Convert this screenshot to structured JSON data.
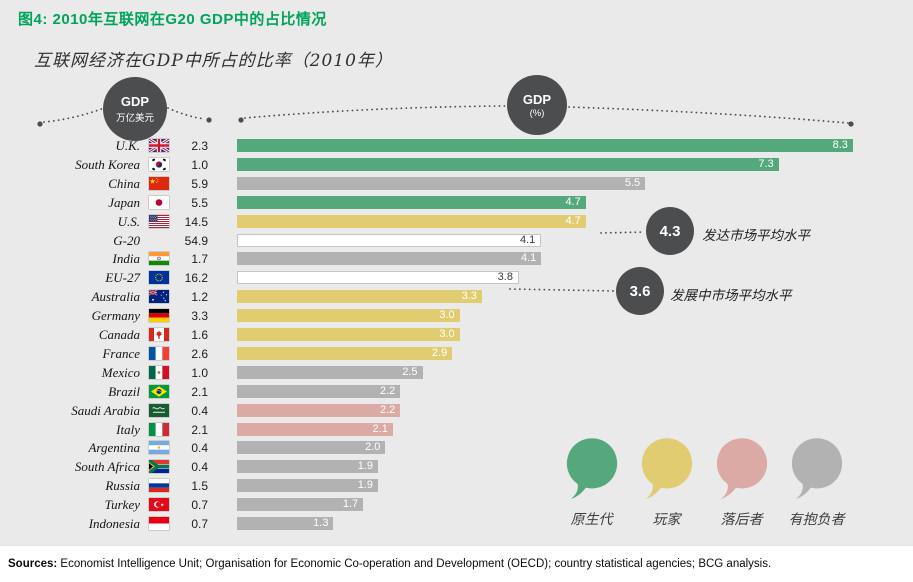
{
  "title": "图4: 2010年互联网在G20 GDP中的占比情况",
  "subtitle": "互联网经济在GDP中所占的比率（2010年）",
  "axis_badges": {
    "left": {
      "line1": "GDP",
      "line2": "万亿美元"
    },
    "right": {
      "line1": "GDP",
      "line2": "(%)"
    }
  },
  "chart_data": {
    "type": "bar",
    "orientation": "horizontal",
    "xlim": [
      0,
      8.8
    ],
    "value_unit": "%",
    "gdp_unit": "万亿美元",
    "rows": [
      {
        "country": "U.K.",
        "flag": "uk",
        "gdp": "2.3",
        "pct": 8.3,
        "group": "green"
      },
      {
        "country": "South Korea",
        "flag": "kr",
        "gdp": "1.0",
        "pct": 7.3,
        "group": "green"
      },
      {
        "country": "China",
        "flag": "cn",
        "gdp": "5.9",
        "pct": 5.5,
        "group": "gray"
      },
      {
        "country": "Japan",
        "flag": "jp",
        "gdp": "5.5",
        "pct": 4.7,
        "group": "green"
      },
      {
        "country": "U.S.",
        "flag": "us",
        "gdp": "14.5",
        "pct": 4.7,
        "group": "yellow"
      },
      {
        "country": "G-20",
        "flag": null,
        "gdp": "54.9",
        "pct": 4.1,
        "group": "white"
      },
      {
        "country": "India",
        "flag": "in",
        "gdp": "1.7",
        "pct": 4.1,
        "group": "gray"
      },
      {
        "country": "EU-27",
        "flag": "eu",
        "gdp": "16.2",
        "pct": 3.8,
        "group": "white"
      },
      {
        "country": "Australia",
        "flag": "au",
        "gdp": "1.2",
        "pct": 3.3,
        "group": "yellow"
      },
      {
        "country": "Germany",
        "flag": "de",
        "gdp": "3.3",
        "pct": 3.0,
        "group": "yellow"
      },
      {
        "country": "Canada",
        "flag": "ca",
        "gdp": "1.6",
        "pct": 3.0,
        "group": "yellow"
      },
      {
        "country": "France",
        "flag": "fr",
        "gdp": "2.6",
        "pct": 2.9,
        "group": "yellow"
      },
      {
        "country": "Mexico",
        "flag": "mx",
        "gdp": "1.0",
        "pct": 2.5,
        "group": "gray"
      },
      {
        "country": "Brazil",
        "flag": "br",
        "gdp": "2.1",
        "pct": 2.2,
        "group": "gray"
      },
      {
        "country": "Saudi Arabia",
        "flag": "sa",
        "gdp": "0.4",
        "pct": 2.2,
        "group": "pink"
      },
      {
        "country": "Italy",
        "flag": "it",
        "gdp": "2.1",
        "pct": 2.1,
        "group": "pink"
      },
      {
        "country": "Argentina",
        "flag": "ar",
        "gdp": "0.4",
        "pct": 2.0,
        "group": "gray"
      },
      {
        "country": "South Africa",
        "flag": "za",
        "gdp": "0.4",
        "pct": 1.9,
        "group": "gray"
      },
      {
        "country": "Russia",
        "flag": "ru",
        "gdp": "1.5",
        "pct": 1.9,
        "group": "gray"
      },
      {
        "country": "Turkey",
        "flag": "tr",
        "gdp": "0.7",
        "pct": 1.7,
        "group": "gray"
      },
      {
        "country": "Indonesia",
        "flag": "id",
        "gdp": "0.7",
        "pct": 1.3,
        "group": "gray"
      }
    ],
    "annotations": [
      {
        "value": "4.3",
        "label": "发达市场平均水平"
      },
      {
        "value": "3.6",
        "label": "发展中市场平均水平"
      }
    ]
  },
  "legend": [
    {
      "label": "原生代",
      "color": "green"
    },
    {
      "label": "玩家",
      "color": "yellow"
    },
    {
      "label": "落后者",
      "color": "pink"
    },
    {
      "label": "有抱负者",
      "color": "gray"
    }
  ],
  "colors": {
    "green": "#55a87c",
    "yellow": "#e2cc71",
    "gray": "#b2b2b2",
    "pink": "#dcaaa4",
    "white_bar": "#ffffff",
    "dark": "#4c4d4f",
    "title_green": "#00a45a",
    "background": "#e9eae9"
  },
  "sources": {
    "label": "Sources:",
    "text": " Economist Intelligence Unit; Organisation for Economic Co-operation and Development (OECD); country statistical agencies; BCG analysis."
  }
}
